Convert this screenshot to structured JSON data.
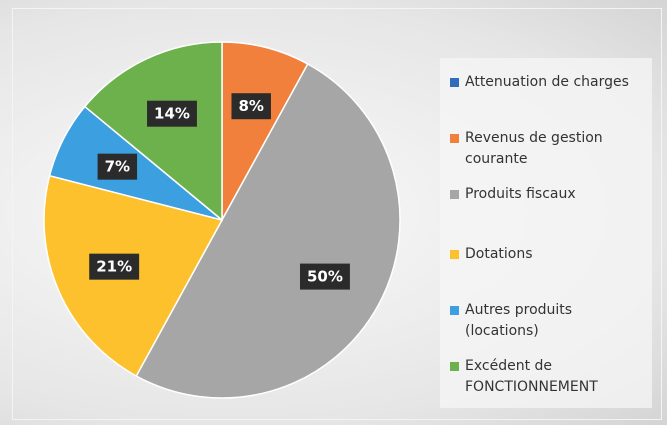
{
  "chart_data": {
    "type": "pie",
    "categories": [
      "Attenuation de charges",
      "Revenus de gestion courante",
      "Produits fiscaux",
      "Dotations",
      "Autres produits (locations)",
      "Excédent de FONCTIONNEMENT"
    ],
    "values": [
      0,
      8,
      50,
      21,
      7,
      14
    ],
    "value_labels": [
      null,
      "8%",
      "50%",
      "21%",
      "7%",
      "14%"
    ],
    "colors": [
      "#2f6ebd",
      "#f0803c",
      "#a6a6a6",
      "#fdc12e",
      "#3b9fe0",
      "#6db14d"
    ],
    "legend": "right"
  }
}
